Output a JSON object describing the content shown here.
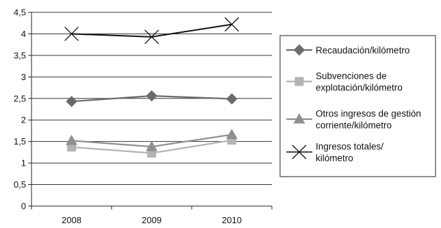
{
  "chart_data": {
    "type": "line",
    "title": "",
    "xlabel": "",
    "ylabel": "",
    "categories": [
      "2008",
      "2009",
      "2010"
    ],
    "ylim": [
      0,
      4.5
    ],
    "y_ticks": [
      "0",
      "0,5",
      "1",
      "1,5",
      "2",
      "2,5",
      "3",
      "3,5",
      "4",
      "4,5"
    ],
    "grid": true,
    "legend_position": "right",
    "series": [
      {
        "name": "Recaudación/kilómetro",
        "name_lines": [
          "Recaudación/kilómetro"
        ],
        "values": [
          2.43,
          2.56,
          2.49
        ],
        "color": "#6b6b6b",
        "marker": "diamond"
      },
      {
        "name": "Subvenciones de explotación/kilómetro",
        "name_lines": [
          "Subvenciones de",
          "explotación/kilómetro"
        ],
        "values": [
          1.37,
          1.23,
          1.53
        ],
        "color": "#b3b3b3",
        "marker": "square"
      },
      {
        "name": "Otros ingresos de gestión corriente/kilómetro",
        "name_lines": [
          "Otros ingresos de gestión",
          "corriente/kilómetro"
        ],
        "values": [
          1.52,
          1.38,
          1.66
        ],
        "color": "#8f8f8f",
        "marker": "triangle"
      },
      {
        "name": "Ingresos totales/kilómetro",
        "name_lines": [
          "Ingresos totales/",
          "kilómetro"
        ],
        "values": [
          4.0,
          3.93,
          4.22
        ],
        "color": "#111111",
        "marker": "x"
      }
    ]
  }
}
